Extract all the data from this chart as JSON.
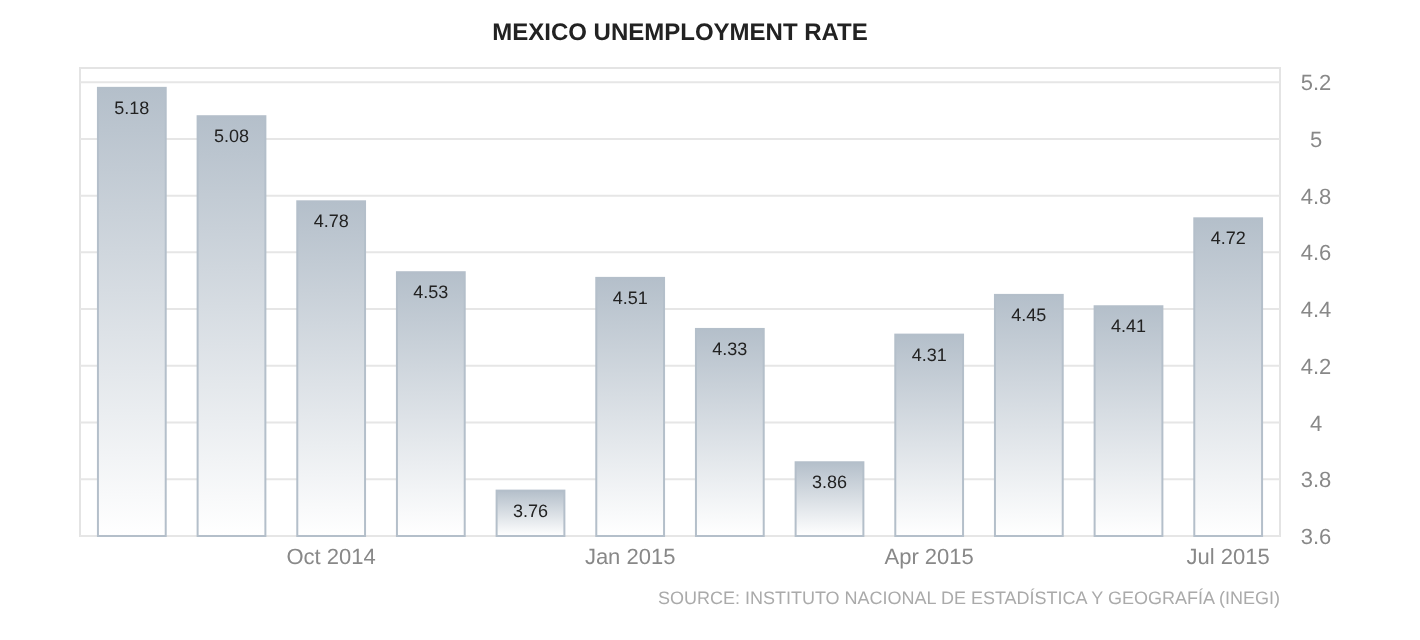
{
  "chart_data": {
    "type": "bar",
    "title": "MEXICO UNEMPLOYMENT RATE",
    "categories": [
      null,
      null,
      "Oct 2014",
      null,
      null,
      "Jan 2015",
      null,
      null,
      "Apr 2015",
      null,
      null,
      "Jul 2015"
    ],
    "values": [
      5.18,
      5.08,
      4.78,
      4.53,
      3.76,
      4.51,
      4.33,
      3.86,
      4.31,
      4.45,
      4.41,
      4.72
    ],
    "color": "#b4bfca",
    "ylim": [
      3.6,
      5.25
    ],
    "yticks": [
      3.6,
      3.8,
      4,
      4.2,
      4.4,
      4.6,
      4.8,
      5,
      5.2
    ],
    "grid": "y",
    "data_labels": true,
    "annotations": [
      "SOURCE: INSTITUTO NACIONAL DE ESTADÍSTICA Y GEOGRAFÍA (INEGI)"
    ]
  }
}
